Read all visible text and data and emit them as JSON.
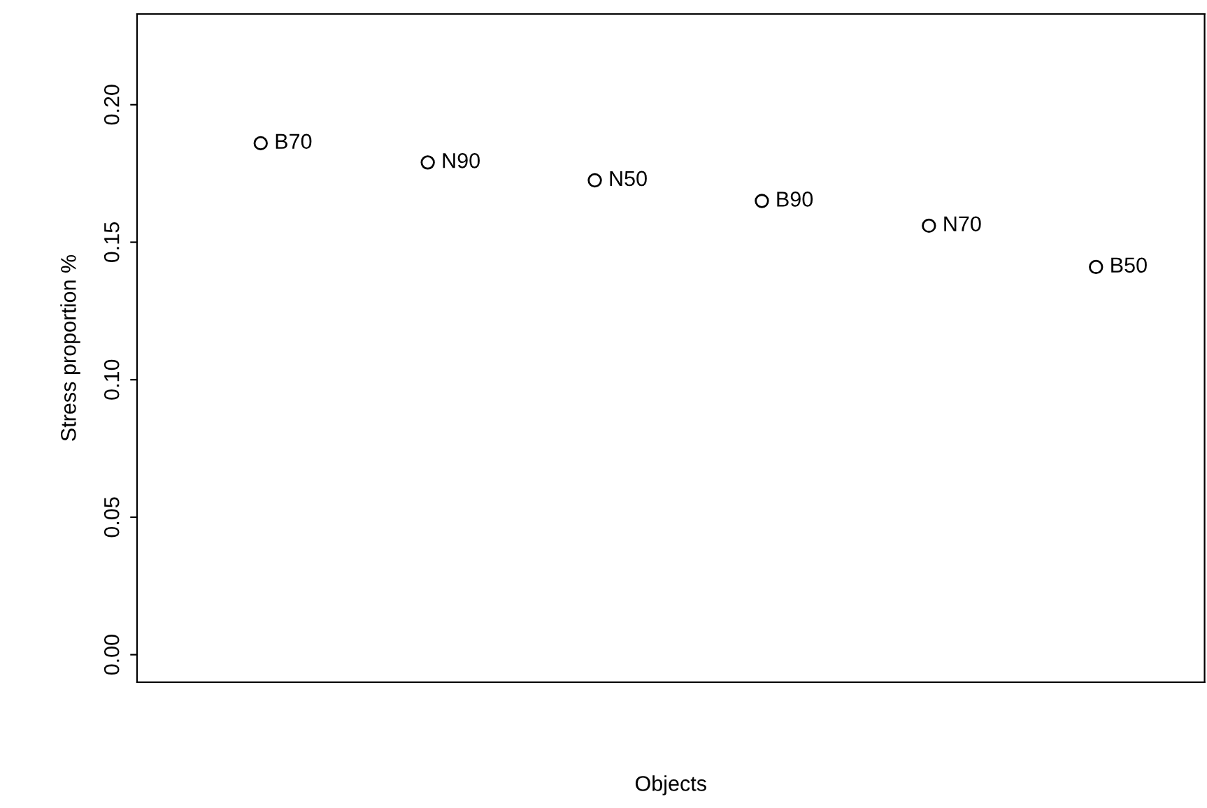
{
  "chart_data": {
    "type": "scatter",
    "xlabel": "Objects",
    "ylabel": "Stress proportion %",
    "categories": [
      null,
      null,
      null,
      null,
      null,
      null
    ],
    "values": [
      0.186,
      0.179,
      0.1725,
      0.165,
      0.156,
      0.141
    ],
    "value_labels": [
      "B70",
      "N90",
      "N50",
      "B90",
      "N70",
      "B50"
    ],
    "color": "#000000",
    "marker": "circle",
    "grid": false,
    "legend": false,
    "tick_labels": "y",
    "ylim": [
      -0.01,
      0.233
    ],
    "yticks": [
      {
        "value": 0,
        "label": "0.00"
      },
      0.05,
      {
        "value": 0.1,
        "label": "0.10"
      },
      0.15,
      {
        "value": 0.2,
        "label": "0.20"
      }
    ]
  }
}
